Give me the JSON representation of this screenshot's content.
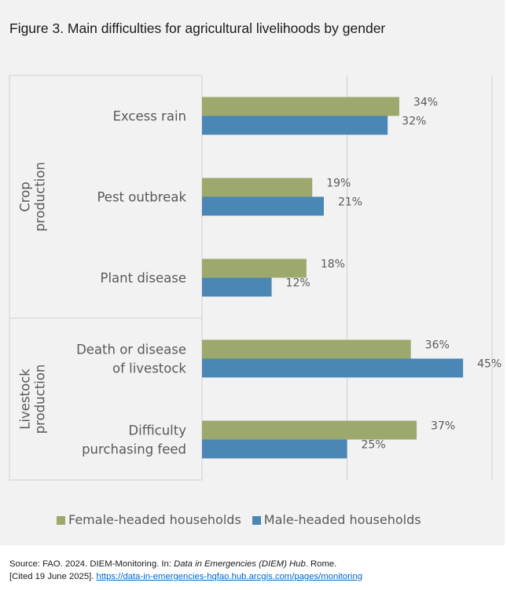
{
  "title": "Figure 3. Main difficulties for agricultural livelihoods by gender",
  "chart_data": {
    "type": "bar",
    "orientation": "horizontal",
    "groups": [
      {
        "label": "Crop production",
        "label_lines": [
          "Crop",
          "production"
        ]
      },
      {
        "label": "Livestock production",
        "label_lines": [
          "Livestock",
          "production"
        ]
      }
    ],
    "categories": [
      "Excess rain",
      "Pest outbreak",
      "Plant disease",
      "Death or disease of livestock",
      "Difficulty purchasing feed"
    ],
    "category_lines": [
      [
        "Excess rain"
      ],
      [
        "Pest outbreak"
      ],
      [
        "Plant disease"
      ],
      [
        "Death or disease",
        "of livestock"
      ],
      [
        "Difficulty",
        "purchasing feed"
      ]
    ],
    "category_group": [
      0,
      0,
      0,
      1,
      1
    ],
    "series": [
      {
        "name": "Female-headed households",
        "color": "#9ca86c",
        "values": [
          34,
          19,
          18,
          36,
          37
        ],
        "labels": [
          "34%",
          "19%",
          "18%",
          "36%",
          "37%"
        ]
      },
      {
        "name": "Male-headed households",
        "color": "#4a87b5",
        "values": [
          32,
          21,
          12,
          45,
          25
        ],
        "labels": [
          "32%",
          "21%",
          "12%",
          "45%",
          "25%"
        ]
      }
    ],
    "xlim": [
      0,
      50
    ],
    "gridlines_at": [
      25,
      50
    ],
    "value_format": "percent",
    "legend_position": "bottom"
  },
  "source": {
    "prefix": "Source: FAO. 2024. DIEM-Monitoring. In: ",
    "italic": "Data in Emergencies (DIEM) Hub",
    "suffix": ". Rome.",
    "cited": "[Cited 19 June 2025]. ",
    "link_text": "https://data-in-emergencies-hqfao.hub.arcgis.com/pages/monitoring"
  }
}
